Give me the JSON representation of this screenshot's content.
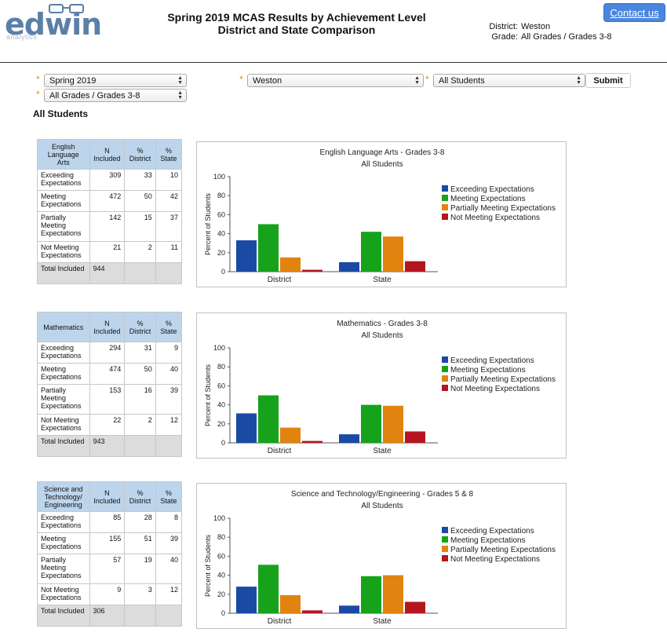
{
  "logo": {
    "word": "edwin",
    "sub": "analytics"
  },
  "title": {
    "line1": "Spring 2019 MCAS Results by Achievement Level",
    "line2": "District and State Comparison"
  },
  "district_info": {
    "district_label": "District:",
    "district_value": "Weston",
    "grade_label": "Grade:",
    "grade_value": "All Grades / Grades 3-8"
  },
  "contact_label": "Contact us",
  "filters": {
    "year": "Spring 2019",
    "district": "Weston",
    "students": "All Students",
    "grade": "All Grades / Grades 3-8",
    "submit": "Submit",
    "required_mark": "*"
  },
  "section_label": "All Students",
  "colors": {
    "exceeding": "#1b4aa5",
    "meeting": "#16a31b",
    "partially": "#e1830f",
    "not": "#b51521"
  },
  "tables": [
    {
      "headers": [
        "English Language Arts",
        "N Included",
        "% District",
        "% State"
      ],
      "rows": [
        [
          "Exceeding Expectations",
          "309",
          "33",
          "10"
        ],
        [
          "Meeting Expectations",
          "472",
          "50",
          "42"
        ],
        [
          "Partially Meeting Expectations",
          "142",
          "15",
          "37"
        ],
        [
          "Not Meeting Expectations",
          "21",
          "2",
          "11"
        ]
      ],
      "total": [
        "Total Included",
        "944"
      ]
    },
    {
      "headers": [
        "Mathematics",
        "N Included",
        "% District",
        "% State"
      ],
      "rows": [
        [
          "Exceeding Expectations",
          "294",
          "31",
          "9"
        ],
        [
          "Meeting Expectations",
          "474",
          "50",
          "40"
        ],
        [
          "Partially Meeting Expectations",
          "153",
          "16",
          "39"
        ],
        [
          "Not Meeting Expectations",
          "22",
          "2",
          "12"
        ]
      ],
      "total": [
        "Total Included",
        "943"
      ]
    },
    {
      "headers": [
        "Science and Technology/ Engineering",
        "N Included",
        "% District",
        "% State"
      ],
      "rows": [
        [
          "Exceeding Expectations",
          "85",
          "28",
          "8"
        ],
        [
          "Meeting Expectations",
          "155",
          "51",
          "39"
        ],
        [
          "Partially Meeting Expectations",
          "57",
          "19",
          "40"
        ],
        [
          "Not Meeting Expectations",
          "9",
          "3",
          "12"
        ]
      ],
      "total": [
        "Total Included",
        "306"
      ]
    }
  ],
  "chart_data": [
    {
      "type": "bar",
      "title": "English Language Arts - Grades 3-8",
      "subtitle": "All Students",
      "ylabel": "Percent of Students",
      "ylim": [
        0,
        100
      ],
      "yticks": [
        0,
        20,
        40,
        60,
        80,
        100
      ],
      "categories": [
        "District",
        "State"
      ],
      "legend": "right",
      "grid": false,
      "series": [
        {
          "name": "Exceeding Expectations",
          "values": [
            33,
            10
          ]
        },
        {
          "name": "Meeting Expectations",
          "values": [
            50,
            42
          ]
        },
        {
          "name": "Partially Meeting Expectations",
          "values": [
            15,
            37
          ]
        },
        {
          "name": "Not Meeting Expectations",
          "values": [
            2,
            11
          ]
        }
      ]
    },
    {
      "type": "bar",
      "title": "Mathematics - Grades 3-8",
      "subtitle": "All Students",
      "ylabel": "Percent of Students",
      "ylim": [
        0,
        100
      ],
      "yticks": [
        0,
        20,
        40,
        60,
        80,
        100
      ],
      "categories": [
        "District",
        "State"
      ],
      "legend": "right",
      "grid": false,
      "series": [
        {
          "name": "Exceeding Expectations",
          "values": [
            31,
            9
          ]
        },
        {
          "name": "Meeting Expectations",
          "values": [
            50,
            40
          ]
        },
        {
          "name": "Partially Meeting Expectations",
          "values": [
            16,
            39
          ]
        },
        {
          "name": "Not Meeting Expectations",
          "values": [
            2,
            12
          ]
        }
      ]
    },
    {
      "type": "bar",
      "title": "Science and Technology/Engineering - Grades 5 & 8",
      "subtitle": "All Students",
      "ylabel": "Percent of Students",
      "ylim": [
        0,
        100
      ],
      "yticks": [
        0,
        20,
        40,
        60,
        80,
        100
      ],
      "categories": [
        "District",
        "State"
      ],
      "legend": "right",
      "grid": false,
      "series": [
        {
          "name": "Exceeding Expectations",
          "values": [
            28,
            8
          ]
        },
        {
          "name": "Meeting Expectations",
          "values": [
            51,
            39
          ]
        },
        {
          "name": "Partially Meeting Expectations",
          "values": [
            19,
            40
          ]
        },
        {
          "name": "Not Meeting Expectations",
          "values": [
            3,
            12
          ]
        }
      ]
    }
  ]
}
